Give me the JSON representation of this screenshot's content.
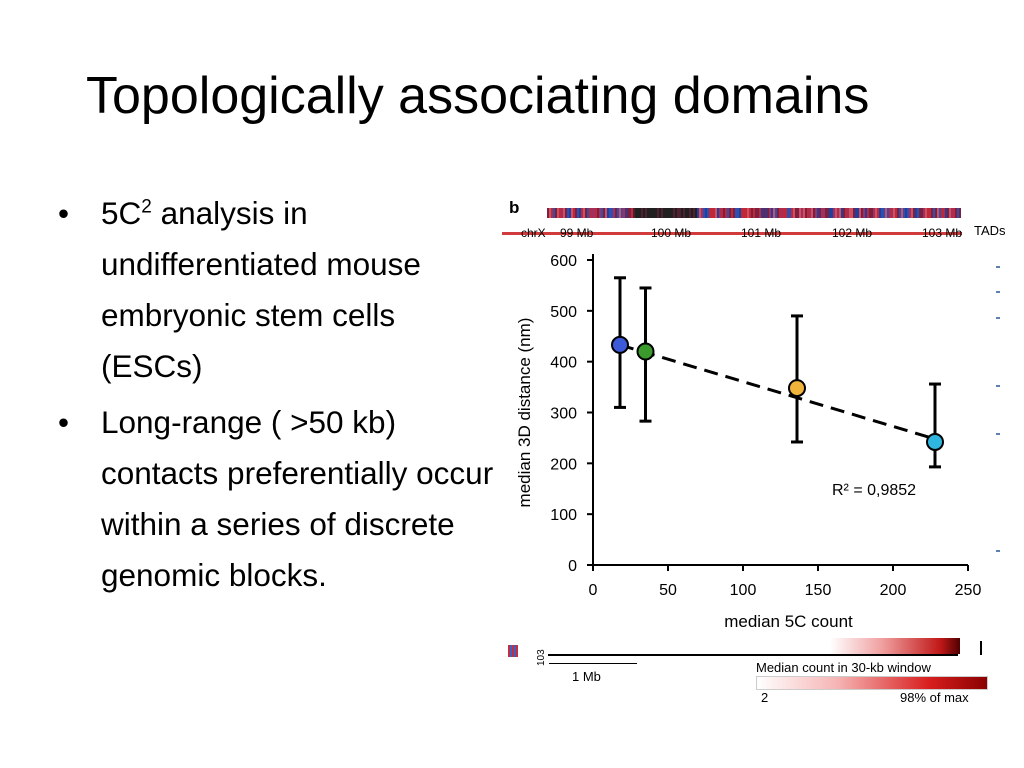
{
  "slide": {
    "title": "Topologically associating domains",
    "bullets": [
      {
        "pre": "5C",
        "sup": "2",
        "post": " analysis in undifferentiated mouse embryonic stem cells (ESCs)"
      },
      {
        "text": "Long-range ( >50 kb) contacts preferentially occur within a series of discrete genomic blocks."
      }
    ]
  },
  "figure": {
    "panel_letter": "b",
    "chr_label": "chrX",
    "mb_labels": [
      "99 Mb",
      "100 Mb",
      "101 Mb",
      "102 Mb",
      "103 Mb"
    ],
    "tads_label": "TADs",
    "y_tick_103": "103",
    "scale_bar_label": "1 Mb",
    "legend_title": "Median count in 30-kb window",
    "legend_min": "2",
    "legend_max": "98% of max",
    "colors": {
      "blue": "#3d5bd9",
      "green": "#3a9a2c",
      "orange": "#f0b43a",
      "cyan": "#2fb6df",
      "track_red": "#d23b3b"
    }
  },
  "chart_data": {
    "type": "scatter",
    "xlabel": "median 5C count",
    "ylabel": "median 3D distance (nm)",
    "xlim": [
      0,
      250
    ],
    "ylim": [
      0,
      600
    ],
    "x_ticks": [
      0,
      50,
      100,
      150,
      200,
      250
    ],
    "y_ticks": [
      0,
      100,
      200,
      300,
      400,
      500,
      600
    ],
    "points": [
      {
        "x": 18,
        "y": 433,
        "low": 310,
        "high": 565,
        "color": "#3d5bd9"
      },
      {
        "x": 35,
        "y": 420,
        "low": 283,
        "high": 545,
        "color": "#3a9a2c"
      },
      {
        "x": 136,
        "y": 348,
        "low": 242,
        "high": 490,
        "color": "#f0b43a"
      },
      {
        "x": 228,
        "y": 242,
        "low": 193,
        "high": 356,
        "color": "#2fb6df"
      }
    ],
    "fit_line": {
      "x1": 18,
      "y1": 433,
      "x2": 228,
      "y2": 248
    },
    "annotation": "R² = 0,9852"
  }
}
